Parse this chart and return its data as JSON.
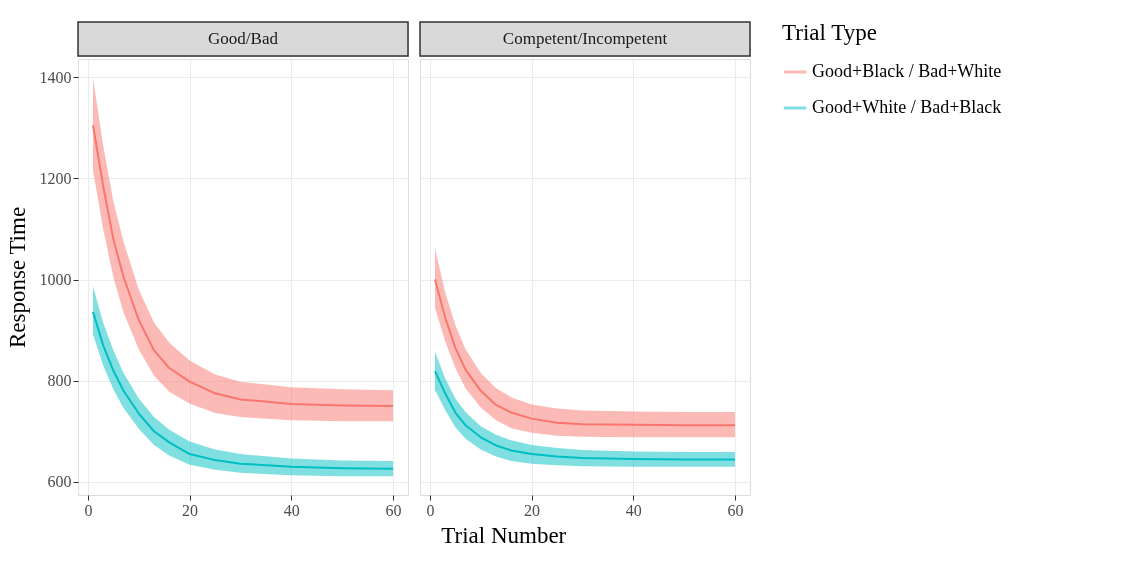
{
  "chart_data": [
    {
      "type": "line",
      "title": "Good/Bad",
      "xlabel": "Trial Number",
      "ylabel": "Response Time",
      "legend_title": "Trial Type",
      "legend": "right",
      "x": [
        1,
        3,
        5,
        7,
        10,
        13,
        16,
        20,
        25,
        30,
        40,
        50,
        60
      ],
      "series": [
        {
          "name": "Good+Black / Bad+White",
          "color": "#f8766d",
          "values": [
            1305,
            1185,
            1080,
            1005,
            920,
            860,
            825,
            798,
            775,
            763,
            754,
            751,
            750
          ],
          "upper": [
            1398,
            1265,
            1155,
            1075,
            980,
            915,
            875,
            840,
            812,
            798,
            787,
            783,
            781
          ],
          "lower": [
            1215,
            1100,
            1005,
            935,
            862,
            810,
            778,
            755,
            736,
            728,
            722,
            720,
            720
          ]
        },
        {
          "name": "Good+White / Bad+Black",
          "color": "#00bfc4",
          "values": [
            936,
            870,
            820,
            780,
            735,
            700,
            678,
            655,
            643,
            636,
            630,
            627,
            626
          ],
          "upper": [
            986,
            915,
            860,
            815,
            765,
            728,
            703,
            680,
            664,
            655,
            646,
            642,
            641
          ],
          "lower": [
            892,
            830,
            783,
            746,
            705,
            673,
            652,
            634,
            624,
            618,
            613,
            611,
            611
          ]
        }
      ],
      "xlim": [
        -1.95,
        62.95
      ],
      "xticks": [
        0,
        20,
        40,
        60
      ],
      "ylim": [
        574,
        1436
      ],
      "yticks": [
        600,
        800,
        1000,
        1200,
        1400
      ],
      "grid": true
    },
    {
      "type": "line",
      "title": "Competent/Incompetent",
      "legend": "right",
      "tick_labels": "x",
      "x": [
        1,
        3,
        5,
        7,
        10,
        13,
        16,
        20,
        25,
        30,
        40,
        50,
        60
      ],
      "series": [
        {
          "name": "Good+Black / Bad+White",
          "color": "#f8766d",
          "values": [
            1000,
            925,
            865,
            822,
            780,
            752,
            737,
            725,
            717,
            714,
            713,
            712,
            712
          ],
          "upper": [
            1062,
            975,
            910,
            862,
            815,
            785,
            767,
            753,
            745,
            741,
            739,
            738,
            738
          ],
          "lower": [
            943,
            878,
            825,
            785,
            747,
            722,
            706,
            697,
            691,
            689,
            688,
            688,
            688
          ]
        },
        {
          "name": "Good+White / Bad+Black",
          "color": "#00bfc4",
          "values": [
            819,
            775,
            737,
            712,
            688,
            672,
            662,
            655,
            650,
            647,
            645,
            644,
            644
          ],
          "upper": [
            857,
            805,
            765,
            738,
            710,
            693,
            682,
            673,
            667,
            663,
            660,
            659,
            659
          ],
          "lower": [
            781,
            742,
            708,
            685,
            664,
            650,
            641,
            636,
            633,
            631,
            630,
            630,
            630
          ]
        }
      ],
      "xlim": [
        -1.95,
        62.95
      ],
      "xticks": [
        0,
        20,
        40,
        60
      ],
      "ylim": [
        574,
        1436
      ],
      "yticks": [
        600,
        800,
        1000,
        1200,
        1400
      ],
      "grid": true
    }
  ]
}
